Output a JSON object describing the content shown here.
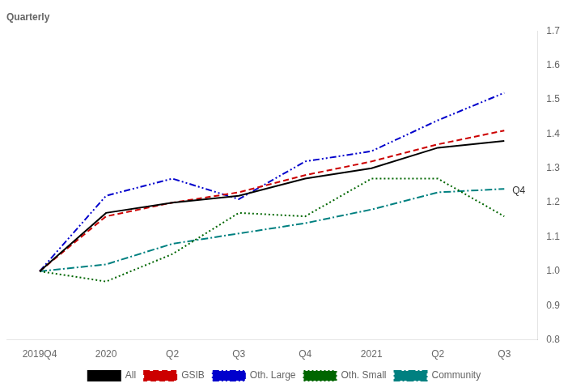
{
  "chart_data": {
    "type": "line",
    "title": "Quarterly",
    "categories": [
      "2019Q4",
      "2020",
      "Q2",
      "Q3",
      "Q4",
      "2021",
      "Q2",
      "Q3"
    ],
    "series": [
      {
        "name": "All",
        "color": "#000000",
        "line_style": "solid",
        "values": [
          1.0,
          1.17,
          1.2,
          1.22,
          1.27,
          1.3,
          1.36,
          1.38
        ]
      },
      {
        "name": "GSIB",
        "color": "#cc0000",
        "line_style": "dashed",
        "values": [
          1.0,
          1.16,
          1.2,
          1.23,
          1.28,
          1.32,
          1.37,
          1.41
        ]
      },
      {
        "name": "Oth. Large",
        "color": "#0000cc",
        "line_style": "dashdotdot",
        "values": [
          1.0,
          1.22,
          1.27,
          1.21,
          1.32,
          1.35,
          1.44,
          1.52
        ]
      },
      {
        "name": "Oth. Small",
        "color": "#006600",
        "line_style": "dotted",
        "values": [
          1.0,
          0.97,
          1.05,
          1.17,
          1.16,
          1.27,
          1.27,
          1.16
        ]
      },
      {
        "name": "Community",
        "color": "#008080",
        "line_style": "dashdot",
        "values": [
          1.0,
          1.02,
          1.08,
          1.11,
          1.14,
          1.18,
          1.23,
          1.24
        ]
      }
    ],
    "ylim": [
      0.8,
      1.7
    ],
    "yticks": [
      0.8,
      0.9,
      {
        "value": 1.0,
        "label": "1.0"
      },
      1.1,
      1.2,
      1.3,
      1.4,
      1.5,
      1.6,
      1.7
    ],
    "annotations": [
      {
        "text": "Q4",
        "x": 7.12,
        "y": 1.235
      }
    ],
    "grid": false,
    "legend": "bottom"
  }
}
